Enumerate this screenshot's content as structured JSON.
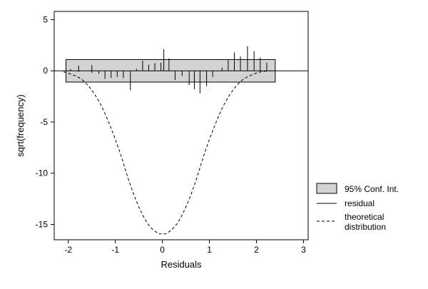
{
  "chart_data": {
    "type": "rootogram",
    "title": "",
    "xlabel": "Residuals",
    "ylabel": "sqrt(frequency)",
    "xlim": [
      -2.3,
      3.1
    ],
    "ylim": [
      -16.5,
      5.8
    ],
    "xticks": [
      -2,
      -1,
      0,
      1,
      2,
      3
    ],
    "yticks": [
      5,
      0,
      -5,
      -10,
      -15
    ],
    "conf_int": {
      "x_min": -2.05,
      "x_max": 2.4,
      "y_low": -1.1,
      "y_high": 1.1
    },
    "residual_bars": [
      {
        "x": -1.95,
        "low": 0.0,
        "high": 0.15
      },
      {
        "x": -1.78,
        "low": -0.1,
        "high": 0.5
      },
      {
        "x": -1.5,
        "low": -0.2,
        "high": 0.55
      },
      {
        "x": -1.35,
        "low": -0.3,
        "high": 0.0
      },
      {
        "x": -1.22,
        "low": -0.8,
        "high": 0.0
      },
      {
        "x": -1.09,
        "low": -0.7,
        "high": 0.0
      },
      {
        "x": -0.96,
        "low": -0.6,
        "high": 0.0
      },
      {
        "x": -0.83,
        "low": -0.7,
        "high": 0.0
      },
      {
        "x": -0.68,
        "low": -1.9,
        "high": 0.0
      },
      {
        "x": -0.55,
        "low": 0.0,
        "high": 0.2
      },
      {
        "x": -0.42,
        "low": 0.0,
        "high": 1.0
      },
      {
        "x": -0.29,
        "low": 0.0,
        "high": 0.6
      },
      {
        "x": -0.16,
        "low": 0.0,
        "high": 0.75
      },
      {
        "x": -0.03,
        "low": 0.0,
        "high": 0.8
      },
      {
        "x": 0.03,
        "low": 0.0,
        "high": 2.1
      },
      {
        "x": 0.14,
        "low": 0.0,
        "high": 1.2
      },
      {
        "x": 0.27,
        "low": -0.9,
        "high": 0.0
      },
      {
        "x": 0.42,
        "low": -0.5,
        "high": 0.0
      },
      {
        "x": 0.57,
        "low": -1.4,
        "high": 0.0
      },
      {
        "x": 0.68,
        "low": -1.8,
        "high": 0.0
      },
      {
        "x": 0.8,
        "low": -2.2,
        "high": 0.0
      },
      {
        "x": 0.94,
        "low": -1.5,
        "high": 0.0
      },
      {
        "x": 1.07,
        "low": -0.6,
        "high": 0.0
      },
      {
        "x": 1.27,
        "low": 0.0,
        "high": 0.3
      },
      {
        "x": 1.4,
        "low": 0.0,
        "high": 1.1
      },
      {
        "x": 1.53,
        "low": 0.0,
        "high": 1.8
      },
      {
        "x": 1.66,
        "low": 0.0,
        "high": 1.4
      },
      {
        "x": 1.81,
        "low": 0.0,
        "high": 2.4
      },
      {
        "x": 1.95,
        "low": 0.0,
        "high": 1.9
      },
      {
        "x": 2.08,
        "low": 0.0,
        "high": 1.3
      },
      {
        "x": 2.22,
        "low": 0.0,
        "high": 0.8
      }
    ],
    "theoretical": {
      "x": [
        -2.1,
        -1.9,
        -1.7,
        -1.5,
        -1.3,
        -1.1,
        -0.9,
        -0.7,
        -0.5,
        -0.3,
        -0.1,
        0.0,
        0.1,
        0.3,
        0.5,
        0.7,
        0.9,
        1.1,
        1.3,
        1.5,
        1.7,
        1.9,
        2.1,
        2.3
      ],
      "y": [
        -0.1,
        -0.4,
        -0.9,
        -1.9,
        -3.4,
        -5.5,
        -8.0,
        -10.9,
        -13.3,
        -15.0,
        -15.85,
        -15.9,
        -15.85,
        -15.0,
        -13.3,
        -10.9,
        -8.0,
        -5.5,
        -3.4,
        -1.9,
        -0.9,
        -0.4,
        -0.1,
        0.0
      ]
    },
    "legend": {
      "position": "right",
      "conf_int_label": "95% Conf. Int.",
      "residual_label": "residual",
      "theoretical_label_line1": "theoretical",
      "theoretical_label_line2": "distribution"
    },
    "colors": {
      "conf_fill": "#d3d3d3",
      "line": "#000000",
      "frame": "#000000"
    }
  }
}
